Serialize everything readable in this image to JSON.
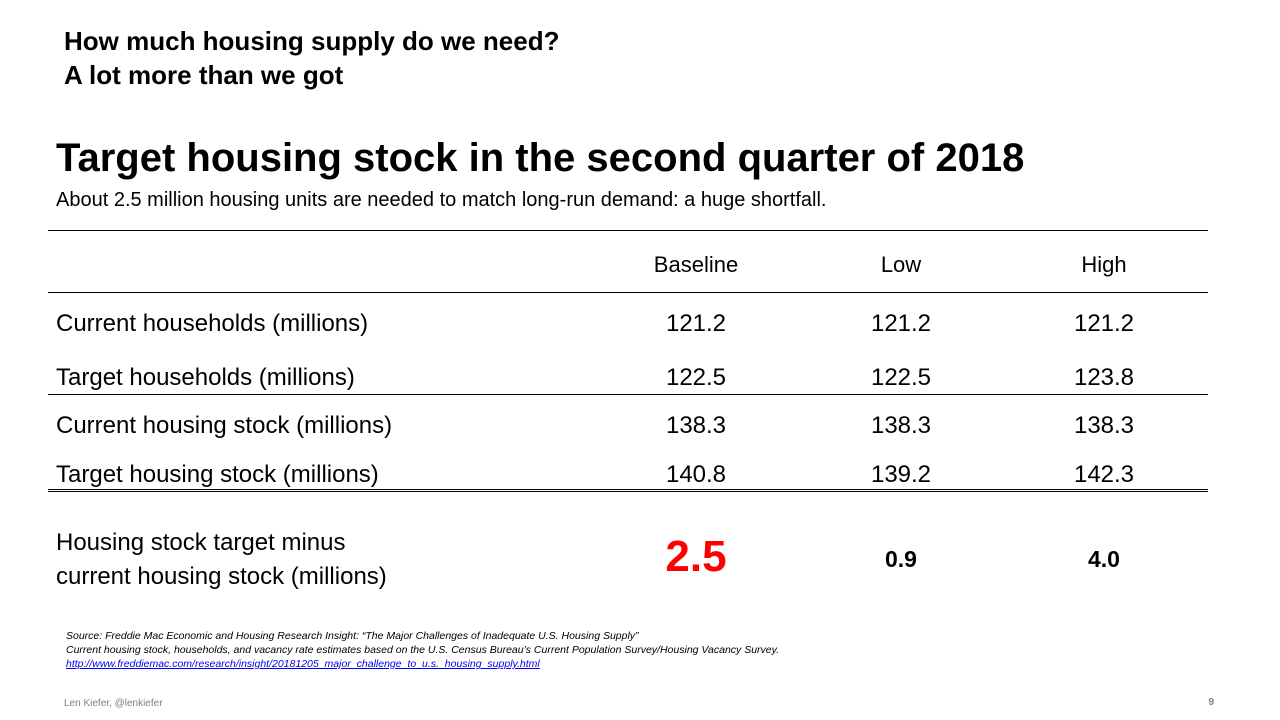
{
  "header": {
    "line1": "How much housing supply do we need?",
    "line2": "A lot more than we got"
  },
  "title": "Target housing stock in the second quarter of 2018",
  "subtitle": "About 2.5 million housing units are needed to match long-run demand: a huge shortfall.",
  "table": {
    "columns": [
      "Baseline",
      "Low",
      "High"
    ],
    "rows": [
      {
        "label": "Current households (millions)",
        "values": [
          "121.2",
          "121.2",
          "121.2"
        ]
      },
      {
        "label": "Target households (millions)",
        "values": [
          "122.5",
          "122.5",
          "123.8"
        ]
      },
      {
        "label": "Current housing stock (millions)",
        "values": [
          "138.3",
          "138.3",
          "138.3"
        ]
      },
      {
        "label": "Target housing stock (millions)",
        "values": [
          "140.8",
          "139.2",
          "142.3"
        ]
      }
    ],
    "gap": {
      "label_line1": "Housing stock target minus",
      "label_line2": "current housing stock (millions)",
      "values": [
        "2.5",
        "0.9",
        "4.0"
      ]
    }
  },
  "source": {
    "line1": "Source: Freddie Mac Economic and Housing Research Insight: “The Major Challenges of Inadequate U.S. Housing Supply”",
    "line2": "Current housing stock, households, and vacancy rate estimates based on the U.S. Census Bureau’s Current Population Survey/Housing Vacancy Survey.",
    "link": "http://www.freddiemac.com/research/insight/20181205_major_challenge_to_u.s._housing_supply.html"
  },
  "footer": {
    "author": "Len Kiefer, @lenkiefer",
    "page_number": "9"
  },
  "colors": {
    "highlight": "#ff0000",
    "link": "#0000ee",
    "footer_text": "#808080"
  }
}
